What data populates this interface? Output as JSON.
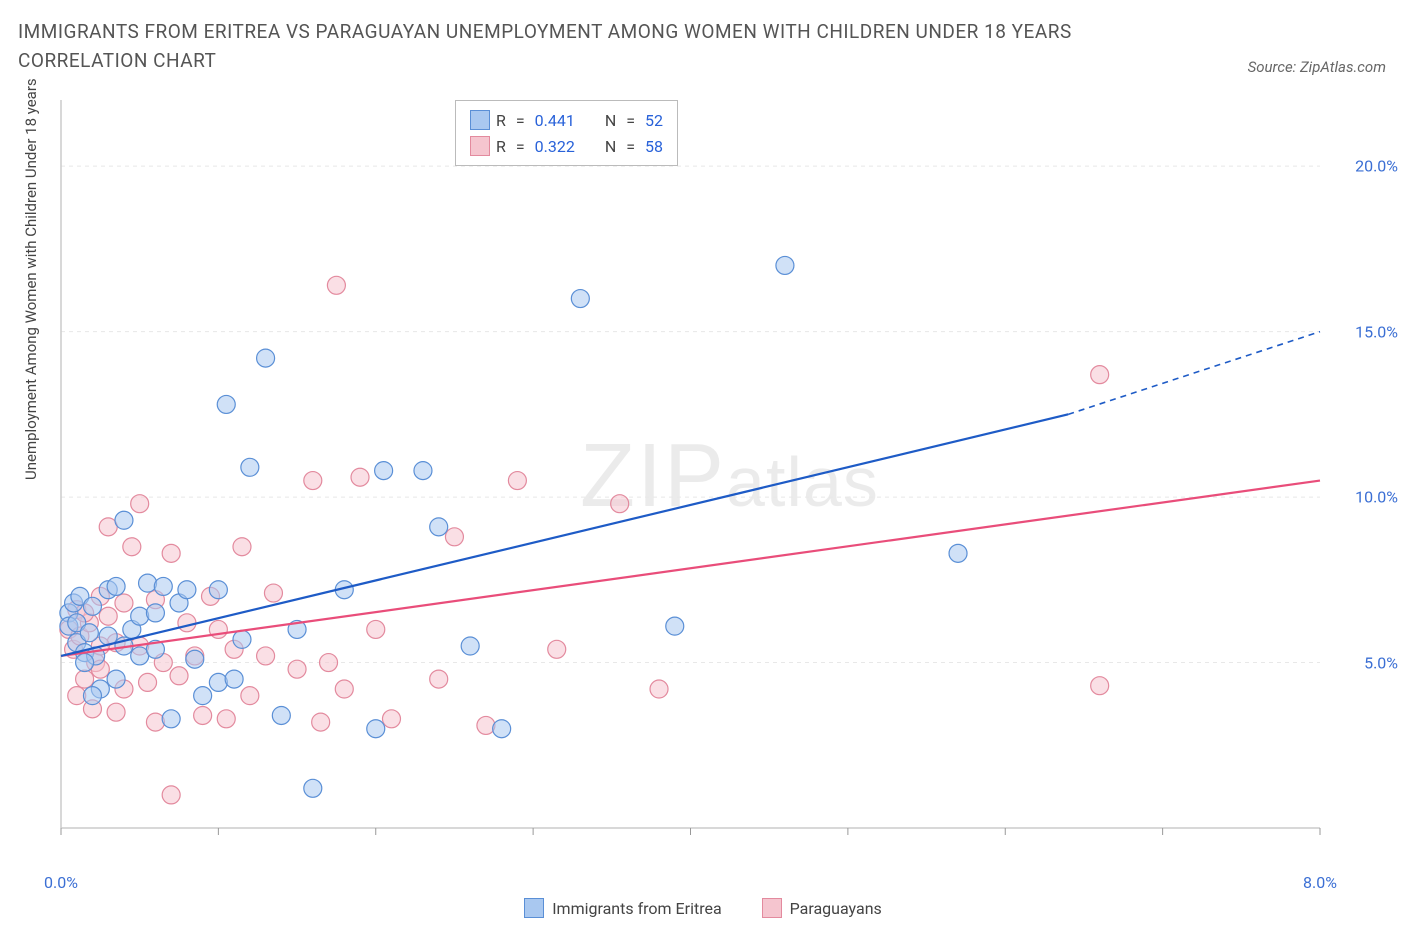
{
  "title": "IMMIGRANTS FROM ERITREA VS PARAGUAYAN UNEMPLOYMENT AMONG WOMEN WITH CHILDREN UNDER 18 YEARS CORRELATION CHART",
  "source": "Source: ZipAtlas.com",
  "ylabel": "Unemployment Among Women with Children Under 18 years",
  "watermark_zip": "ZIP",
  "watermark_atlas": "atlas",
  "chart": {
    "type": "scatter",
    "background_color": "#ffffff",
    "grid_color": "#e8e8e8",
    "axis_color": "#cccccc",
    "tick_color": "#999999",
    "xlim": [
      0,
      8
    ],
    "ylim": [
      0,
      22
    ],
    "x_ticks": [
      0,
      1,
      2,
      3,
      4,
      5,
      6,
      7,
      8
    ],
    "x_tick_labels": [
      "0.0%",
      "",
      "",
      "",
      "",
      "",
      "",
      "",
      "8.0%"
    ],
    "y_ticks": [
      5,
      10,
      15,
      20
    ],
    "y_tick_labels": [
      "5.0%",
      "10.0%",
      "15.0%",
      "20.0%"
    ],
    "marker_radius": 9,
    "marker_opacity": 0.55,
    "marker_stroke_width": 1.2,
    "trend_line_width": 2.2,
    "series": [
      {
        "name": "Immigrants from Eritrea",
        "color_fill": "#a9c8f0",
        "color_stroke": "#5a8fd6",
        "trend_color": "#1e5bc6",
        "R": "0.441",
        "N": "52",
        "trend": {
          "x0": 0,
          "y0": 5.2,
          "x1": 6.4,
          "y1": 12.5,
          "x1_ext": 8,
          "y1_ext": 15.0
        },
        "points": [
          [
            0.05,
            6.5
          ],
          [
            0.05,
            6.1
          ],
          [
            0.08,
            6.8
          ],
          [
            0.1,
            5.6
          ],
          [
            0.1,
            6.2
          ],
          [
            0.12,
            7.0
          ],
          [
            0.15,
            5.3
          ],
          [
            0.18,
            5.9
          ],
          [
            0.2,
            6.7
          ],
          [
            0.22,
            5.2
          ],
          [
            0.25,
            4.2
          ],
          [
            0.3,
            7.2
          ],
          [
            0.3,
            5.8
          ],
          [
            0.35,
            7.3
          ],
          [
            0.35,
            4.5
          ],
          [
            0.4,
            9.3
          ],
          [
            0.45,
            6.0
          ],
          [
            0.5,
            6.4
          ],
          [
            0.5,
            5.2
          ],
          [
            0.55,
            7.4
          ],
          [
            0.6,
            5.4
          ],
          [
            0.65,
            7.3
          ],
          [
            0.7,
            3.3
          ],
          [
            0.75,
            6.8
          ],
          [
            0.8,
            7.2
          ],
          [
            0.85,
            5.1
          ],
          [
            0.9,
            4.0
          ],
          [
            1.0,
            4.4
          ],
          [
            1.0,
            7.2
          ],
          [
            1.05,
            12.8
          ],
          [
            1.1,
            4.5
          ],
          [
            1.15,
            5.7
          ],
          [
            1.2,
            10.9
          ],
          [
            1.3,
            14.2
          ],
          [
            1.4,
            3.4
          ],
          [
            1.5,
            6.0
          ],
          [
            1.6,
            1.2
          ],
          [
            1.8,
            7.2
          ],
          [
            2.0,
            3.0
          ],
          [
            2.05,
            10.8
          ],
          [
            2.3,
            10.8
          ],
          [
            2.4,
            9.1
          ],
          [
            2.6,
            5.5
          ],
          [
            2.8,
            3.0
          ],
          [
            3.3,
            16.0
          ],
          [
            3.9,
            6.1
          ],
          [
            4.6,
            17.0
          ],
          [
            5.7,
            8.3
          ],
          [
            0.15,
            5.0
          ],
          [
            0.2,
            4.0
          ],
          [
            0.4,
            5.5
          ],
          [
            0.6,
            6.5
          ]
        ]
      },
      {
        "name": "Paraguayans",
        "color_fill": "#f5c5cf",
        "color_stroke": "#e38a9e",
        "trend_color": "#e94d7a",
        "R": "0.322",
        "N": "58",
        "trend": {
          "x0": 0,
          "y0": 5.2,
          "x1": 8,
          "y1": 10.5,
          "x1_ext": 8,
          "y1_ext": 10.5
        },
        "points": [
          [
            0.05,
            6.0
          ],
          [
            0.08,
            5.4
          ],
          [
            0.1,
            6.6
          ],
          [
            0.1,
            4.0
          ],
          [
            0.12,
            5.8
          ],
          [
            0.15,
            4.5
          ],
          [
            0.18,
            6.2
          ],
          [
            0.2,
            3.6
          ],
          [
            0.22,
            5.0
          ],
          [
            0.25,
            7.0
          ],
          [
            0.25,
            4.8
          ],
          [
            0.3,
            9.1
          ],
          [
            0.3,
            6.4
          ],
          [
            0.35,
            5.6
          ],
          [
            0.35,
            3.5
          ],
          [
            0.4,
            6.8
          ],
          [
            0.4,
            4.2
          ],
          [
            0.45,
            8.5
          ],
          [
            0.5,
            9.8
          ],
          [
            0.5,
            5.5
          ],
          [
            0.55,
            4.4
          ],
          [
            0.6,
            6.9
          ],
          [
            0.6,
            3.2
          ],
          [
            0.65,
            5.0
          ],
          [
            0.7,
            8.3
          ],
          [
            0.7,
            1.0
          ],
          [
            0.75,
            4.6
          ],
          [
            0.8,
            6.2
          ],
          [
            0.85,
            5.2
          ],
          [
            0.9,
            3.4
          ],
          [
            0.95,
            7.0
          ],
          [
            1.0,
            6.0
          ],
          [
            1.05,
            3.3
          ],
          [
            1.1,
            5.4
          ],
          [
            1.15,
            8.5
          ],
          [
            1.2,
            4.0
          ],
          [
            1.3,
            5.2
          ],
          [
            1.35,
            7.1
          ],
          [
            1.5,
            4.8
          ],
          [
            1.6,
            10.5
          ],
          [
            1.65,
            3.2
          ],
          [
            1.7,
            5.0
          ],
          [
            1.75,
            16.4
          ],
          [
            1.8,
            4.2
          ],
          [
            1.9,
            10.6
          ],
          [
            2.0,
            6.0
          ],
          [
            2.1,
            3.3
          ],
          [
            2.4,
            4.5
          ],
          [
            2.5,
            8.8
          ],
          [
            2.7,
            3.1
          ],
          [
            2.9,
            10.5
          ],
          [
            3.15,
            5.4
          ],
          [
            3.55,
            9.8
          ],
          [
            3.8,
            4.2
          ],
          [
            6.6,
            13.7
          ],
          [
            6.6,
            4.3
          ],
          [
            0.15,
            6.5
          ],
          [
            0.25,
            5.5
          ]
        ]
      }
    ]
  },
  "legend_top_labels": {
    "R": "R",
    "N": "N"
  },
  "legend_bottom": [
    {
      "label": "Immigrants from Eritrea",
      "series": 0
    },
    {
      "label": "Paraguayans",
      "series": 1
    }
  ]
}
